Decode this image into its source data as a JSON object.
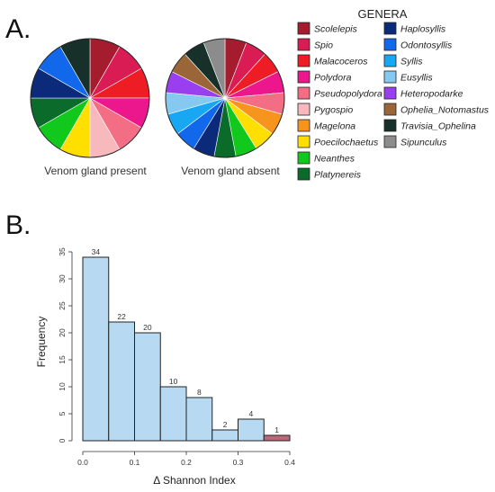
{
  "panel_a_label": "A.",
  "panel_b_label": "B.",
  "chart_data": [
    {
      "type": "pie",
      "caption": "Venom gland present",
      "slices": [
        {
          "genus": "Scolelepis",
          "value": 1
        },
        {
          "genus": "Spio",
          "value": 1
        },
        {
          "genus": "Malacoceros",
          "value": 1
        },
        {
          "genus": "Polydora",
          "value": 1
        },
        {
          "genus": "Pseudopolydora",
          "value": 1
        },
        {
          "genus": "Pygospio",
          "value": 1
        },
        {
          "genus": "Poecilochaetus",
          "value": 1
        },
        {
          "genus": "Neanthes",
          "value": 1
        },
        {
          "genus": "Platynereis",
          "value": 1
        },
        {
          "genus": "Haplosyllis",
          "value": 1
        },
        {
          "genus": "Odontosyllis",
          "value": 1
        },
        {
          "genus": "Travisia_Ophelina",
          "value": 1
        }
      ]
    },
    {
      "type": "pie",
      "caption": "Venom gland absent",
      "slices": [
        {
          "genus": "Scolelepis",
          "value": 1
        },
        {
          "genus": "Spio",
          "value": 1
        },
        {
          "genus": "Malacoceros",
          "value": 1
        },
        {
          "genus": "Polydora",
          "value": 1
        },
        {
          "genus": "Pseudopolydora",
          "value": 1
        },
        {
          "genus": "Magelona",
          "value": 1
        },
        {
          "genus": "Poecilochaetus",
          "value": 1
        },
        {
          "genus": "Neanthes",
          "value": 1
        },
        {
          "genus": "Platynereis",
          "value": 1
        },
        {
          "genus": "Haplosyllis",
          "value": 1
        },
        {
          "genus": "Odontosyllis",
          "value": 1
        },
        {
          "genus": "Syllis",
          "value": 1
        },
        {
          "genus": "Eusyllis",
          "value": 1
        },
        {
          "genus": "Heteropodarke",
          "value": 1
        },
        {
          "genus": "Ophelia_Notomastus",
          "value": 1
        },
        {
          "genus": "Travisia_Ophelina",
          "value": 1
        },
        {
          "genus": "Sipunculus",
          "value": 1
        }
      ]
    },
    {
      "type": "bar",
      "subtype": "histogram",
      "xlabel": "Δ Shannon Index",
      "ylabel": "Frequency",
      "bins": [
        {
          "start": 0.0,
          "end": 0.05,
          "value": 34
        },
        {
          "start": 0.05,
          "end": 0.1,
          "value": 22
        },
        {
          "start": 0.1,
          "end": 0.15,
          "value": 20
        },
        {
          "start": 0.15,
          "end": 0.2,
          "value": 10
        },
        {
          "start": 0.2,
          "end": 0.25,
          "value": 8
        },
        {
          "start": 0.25,
          "end": 0.3,
          "value": 2
        },
        {
          "start": 0.3,
          "end": 0.35,
          "value": 4
        },
        {
          "start": 0.35,
          "end": 0.4,
          "value": 1,
          "highlight": true
        }
      ],
      "xlim": [
        0.0,
        0.4
      ],
      "ylim": [
        0,
        35
      ],
      "x_ticks": [
        "0.0",
        "0.1",
        "0.2",
        "0.3",
        "0.4"
      ],
      "y_ticks": [
        "0",
        "5",
        "10",
        "15",
        "20",
        "25",
        "30",
        "35"
      ],
      "bar_color": "#b7d9f2",
      "highlight_color": "#b86a78",
      "grid": false
    }
  ],
  "legend": {
    "title": "GENERA",
    "placement": "right",
    "items": [
      {
        "name": "Scolelepis",
        "color": "#a51c2e"
      },
      {
        "name": "Spio",
        "color": "#d91c54"
      },
      {
        "name": "Malacoceros",
        "color": "#ee1c24"
      },
      {
        "name": "Polydora",
        "color": "#ec178c"
      },
      {
        "name": "Pseudopolydora",
        "color": "#f36e84"
      },
      {
        "name": "Pygospio",
        "color": "#f8b9bd"
      },
      {
        "name": "Magelona",
        "color": "#f7941d"
      },
      {
        "name": "Poecilochaetus",
        "color": "#ffdf00"
      },
      {
        "name": "Neanthes",
        "color": "#11c81c"
      },
      {
        "name": "Platynereis",
        "color": "#0a6b2a"
      },
      {
        "name": "Haplosyllis",
        "color": "#0b2a7a"
      },
      {
        "name": "Odontosyllis",
        "color": "#1268ea"
      },
      {
        "name": "Syllis",
        "color": "#18a7f2"
      },
      {
        "name": "Eusyllis",
        "color": "#86c9f0"
      },
      {
        "name": "Heteropodarke",
        "color": "#9a3ff0"
      },
      {
        "name": "Ophelia_Notomastus",
        "color": "#9a6637"
      },
      {
        "name": "Travisia_Ophelina",
        "color": "#17302a"
      },
      {
        "name": "Sipunculus",
        "color": "#8c8c8c"
      }
    ]
  }
}
